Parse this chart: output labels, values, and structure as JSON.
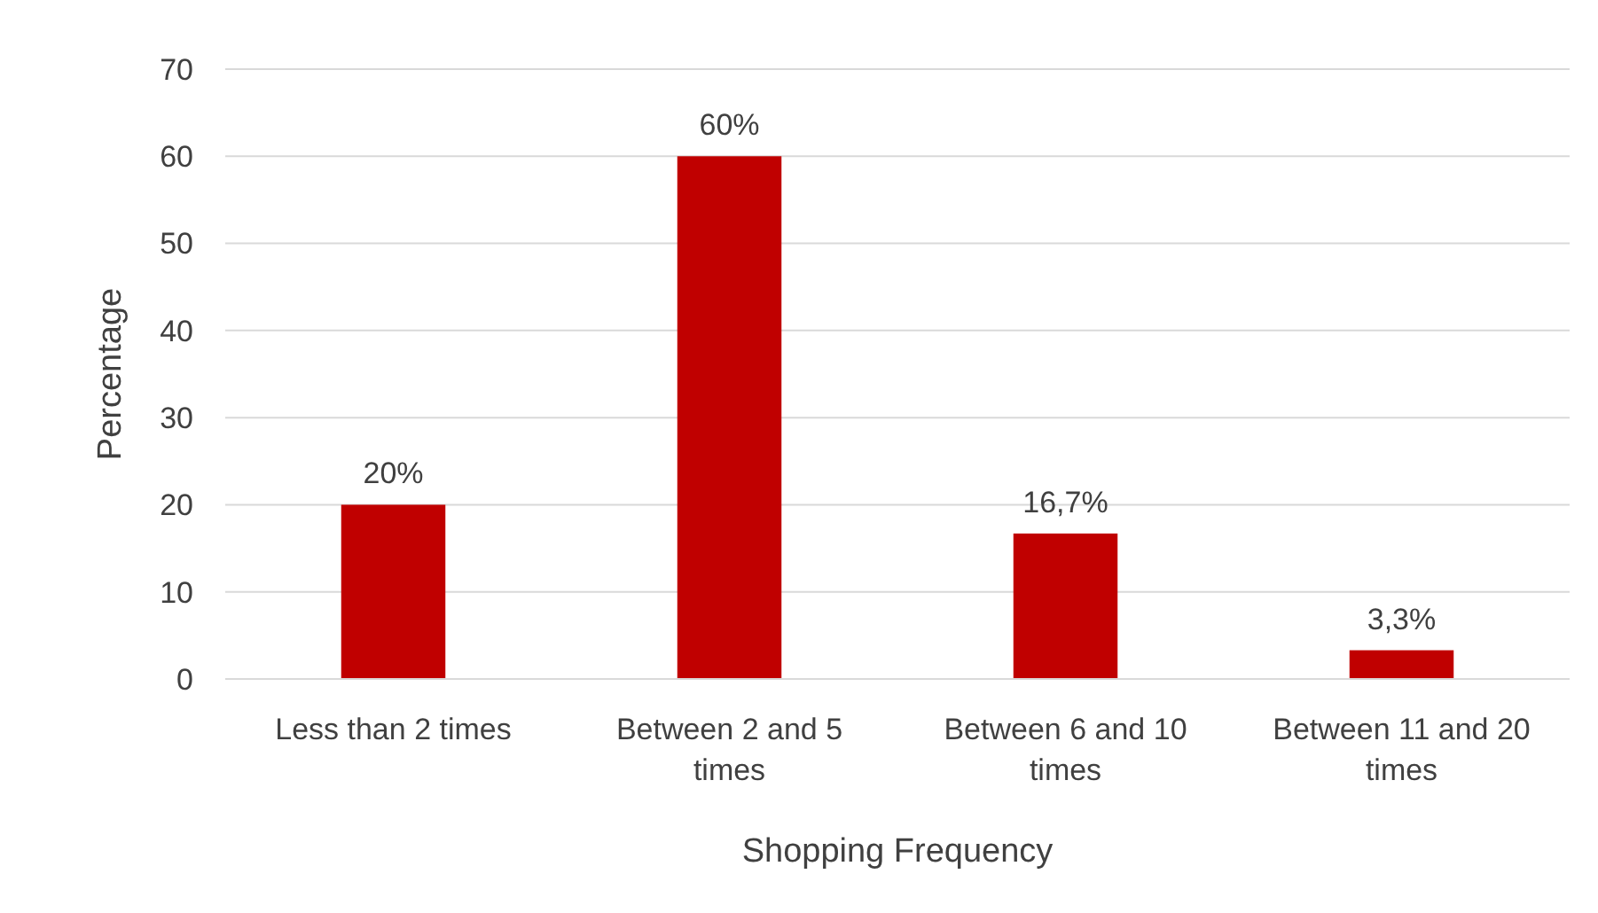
{
  "chart_data": {
    "type": "bar",
    "xlabel": "Shopping Frequency",
    "ylabel": "Percentage",
    "categories": [
      "Less than 2 times",
      "Between 2 and 5 times",
      "Between 6 and 10 times",
      "Between 11 and 20 times"
    ],
    "values": [
      20,
      60,
      16.7,
      3.3
    ],
    "value_labels": [
      "20%",
      "60%",
      "16,7%",
      "3,3%"
    ],
    "color": "#c00000",
    "ylim": [
      0,
      70
    ],
    "yticks": [
      0,
      10,
      20,
      30,
      40,
      50,
      60,
      70
    ],
    "grid": "y"
  }
}
